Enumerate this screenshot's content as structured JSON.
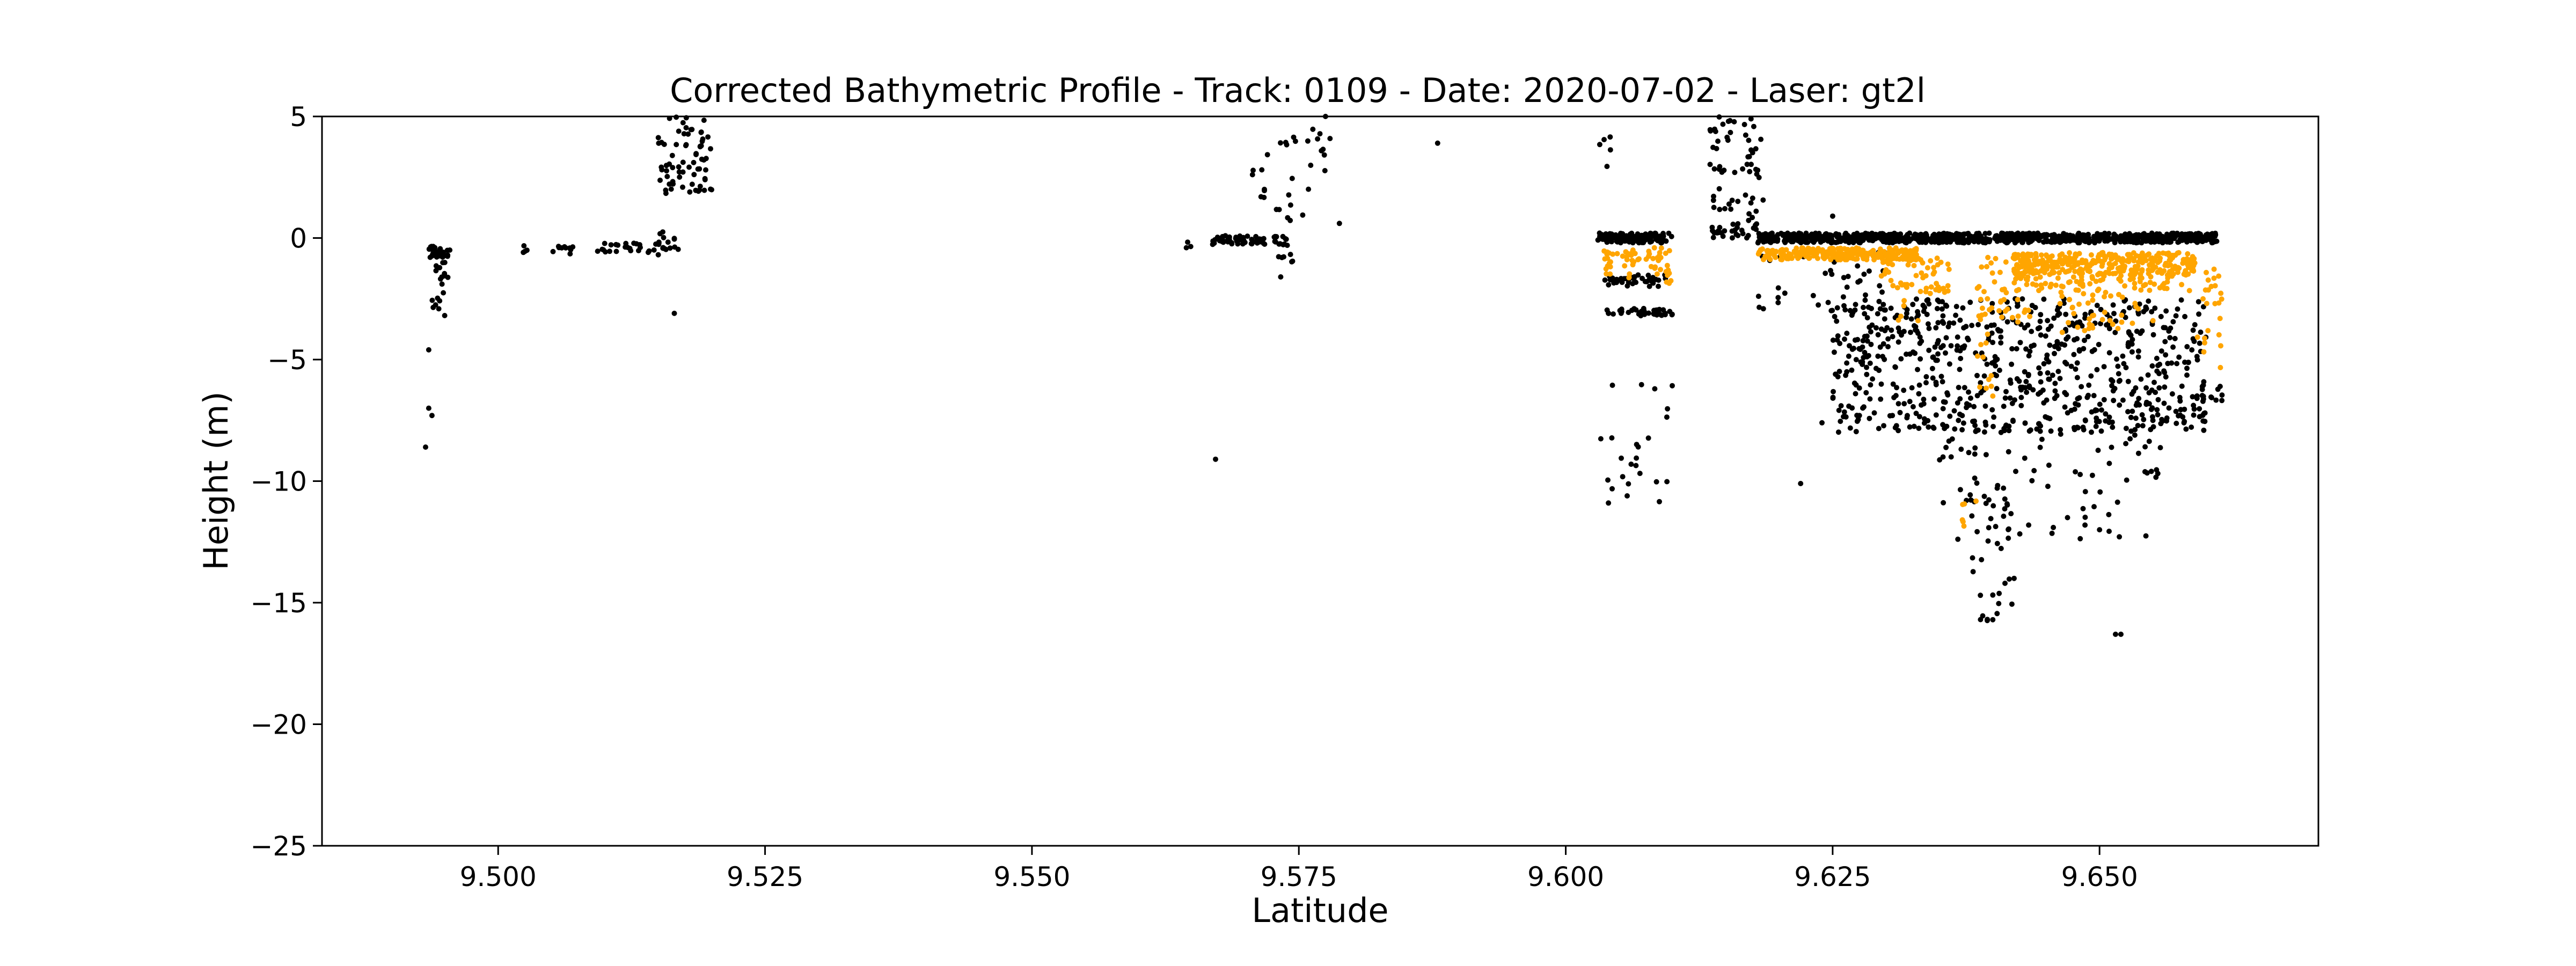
{
  "chart_data": {
    "type": "scatter",
    "title": "Corrected Bathymetric Profile - Track: 0109 - Date: 2020-07-02 - Laser: gt2l",
    "xlabel": "Latitude",
    "ylabel": "Height (m)",
    "xlim": [
      9.4835,
      9.6705
    ],
    "ylim": [
      -25,
      5
    ],
    "x_ticks": [
      9.5,
      9.525,
      9.55,
      9.575,
      9.6,
      9.625,
      9.65
    ],
    "x_tick_labels": [
      "9.500",
      "9.525",
      "9.550",
      "9.575",
      "9.600",
      "9.625",
      "9.650"
    ],
    "y_ticks": [
      5,
      0,
      -5,
      -10,
      -15,
      -20,
      -25
    ],
    "y_tick_labels": [
      "5",
      "0",
      "−5",
      "−10",
      "−15",
      "−20",
      "−25"
    ],
    "grid": false,
    "legend": "none",
    "series": [
      {
        "color": "#000000",
        "clusters": [
          {
            "x": [
              9.4935,
              9.4955
            ],
            "y": [
              -0.8,
              -0.3
            ],
            "count": 30
          },
          {
            "x": [
              9.4935,
              9.495
            ],
            "y": [
              -3.2,
              -0.8
            ],
            "count": 14
          },
          {
            "x": [
              9.4945,
              9.496
            ],
            "y": [
              -2.2,
              -1.0
            ],
            "count": 6
          },
          {
            "x": [
              9.502,
              9.5035
            ],
            "y": [
              -0.6,
              -0.3
            ],
            "count": 4
          },
          {
            "x": [
              9.5045,
              9.507
            ],
            "y": [
              -0.7,
              -0.3
            ],
            "count": 10
          },
          {
            "x": [
              9.509,
              9.5155
            ],
            "y": [
              -0.7,
              -0.2
            ],
            "count": 28
          },
          {
            "x": [
              9.515,
              9.517
            ],
            "y": [
              -0.5,
              0.3
            ],
            "count": 14
          },
          {
            "x": [
              9.515,
              9.52
            ],
            "y": [
              1.8,
              5.0
            ],
            "count": 70
          },
          {
            "x": [
              9.5635,
              9.565
            ],
            "y": [
              -0.4,
              -0.1
            ],
            "count": 3
          },
          {
            "x": [
              9.5665,
              9.574
            ],
            "y": [
              -0.3,
              0.1
            ],
            "count": 60
          },
          {
            "x": [
              9.573,
              9.5745
            ],
            "y": [
              -1.0,
              -0.2
            ],
            "count": 6
          },
          {
            "x": [
              9.5705,
              9.578
            ],
            "y": [
              0.6,
              5.0
            ],
            "count": 32
          },
          {
            "x": [
              9.603,
              9.61
            ],
            "y": [
              -0.2,
              0.2
            ],
            "count": 120
          },
          {
            "x": [
              9.6035,
              9.6095
            ],
            "y": [
              -2.0,
              -1.5
            ],
            "count": 40
          },
          {
            "x": [
              9.6035,
              9.61
            ],
            "y": [
              -3.2,
              -2.9
            ],
            "count": 40
          },
          {
            "x": [
              9.603,
              9.6045
            ],
            "y": [
              2.8,
              4.2
            ],
            "count": 5
          },
          {
            "x": [
              9.603,
              9.61
            ],
            "y": [
              -11.0,
              -6.0
            ],
            "count": 24
          },
          {
            "x": [
              9.6135,
              9.6185
            ],
            "y": [
              0.0,
              5.0
            ],
            "count": 70
          },
          {
            "x": [
              9.6135,
              9.618
            ],
            "y": [
              0.0,
              0.5
            ],
            "count": 20
          },
          {
            "x": [
              9.618,
              9.661
            ],
            "y": [
              -0.2,
              0.2
            ],
            "count": 900
          },
          {
            "x": [
              9.618,
              9.63
            ],
            "y": [
              -3.0,
              -0.5
            ],
            "count": 40
          },
          {
            "x": [
              9.625,
              9.66
            ],
            "y": [
              -8.0,
              -2.5
            ],
            "count": 700
          },
          {
            "x": [
              9.635,
              9.656
            ],
            "y": [
              -12.5,
              -6.0
            ],
            "count": 100
          },
          {
            "x": [
              9.638,
              9.642
            ],
            "y": [
              -15.8,
              -10.0
            ],
            "count": 30
          },
          {
            "x": [
              9.659,
              9.6615
            ],
            "y": [
              -7.2,
              -5.8
            ],
            "count": 12
          }
        ],
        "points": [
          {
            "x": 9.4935,
            "y": -4.6
          },
          {
            "x": 9.4935,
            "y": -7.0
          },
          {
            "x": 9.4938,
            "y": -7.3
          },
          {
            "x": 9.4932,
            "y": -8.6
          },
          {
            "x": 9.5165,
            "y": -3.1
          },
          {
            "x": 9.5672,
            "y": -9.1
          },
          {
            "x": 9.5733,
            "y": -1.6
          },
          {
            "x": 9.5788,
            "y": 0.6
          },
          {
            "x": 9.5775,
            "y": 5.0
          },
          {
            "x": 9.588,
            "y": 3.9
          },
          {
            "x": 9.625,
            "y": 0.9
          },
          {
            "x": 9.624,
            "y": -7.6
          },
          {
            "x": 9.622,
            "y": -10.1
          },
          {
            "x": 9.604,
            "y": -10.9
          },
          {
            "x": 9.64,
            "y": -15.7
          },
          {
            "x": 9.642,
            "y": -14.0
          },
          {
            "x": 9.652,
            "y": -16.3
          },
          {
            "x": 9.6515,
            "y": -16.3
          },
          {
            "x": 9.647,
            "y": -11.5
          },
          {
            "x": 9.65,
            "y": -12.0
          }
        ]
      },
      {
        "color": "#ffa500",
        "clusters": [
          {
            "x": [
              9.6035,
              9.6045
            ],
            "y": [
              -1.6,
              -0.4
            ],
            "count": 14
          },
          {
            "x": [
              9.6045,
              9.61
            ],
            "y": [
              -0.9,
              -0.4
            ],
            "count": 22
          },
          {
            "x": [
              9.6055,
              9.6065
            ],
            "y": [
              -1.7,
              -0.6
            ],
            "count": 10
          },
          {
            "x": [
              9.608,
              9.609
            ],
            "y": [
              -1.6,
              -0.6
            ],
            "count": 8
          },
          {
            "x": [
              9.6093,
              9.61
            ],
            "y": [
              -1.9,
              -0.7
            ],
            "count": 8
          },
          {
            "x": [
              9.618,
              9.633
            ],
            "y": [
              -0.9,
              -0.4
            ],
            "count": 260
          },
          {
            "x": [
              9.6295,
              9.633
            ],
            "y": [
              -2.0,
              -0.8
            ],
            "count": 24
          },
          {
            "x": [
              9.631,
              9.632
            ],
            "y": [
              -3.5,
              -2.0
            ],
            "count": 6
          },
          {
            "x": [
              9.633,
              9.636
            ],
            "y": [
              -2.3,
              -0.8
            ],
            "count": 30
          },
          {
            "x": [
              9.6385,
              9.6435
            ],
            "y": [
              -3.5,
              -0.8
            ],
            "count": 50
          },
          {
            "x": [
              9.6385,
              9.64
            ],
            "y": [
              -6.5,
              -3.5
            ],
            "count": 10
          },
          {
            "x": [
              9.642,
              9.659
            ],
            "y": [
              -1.5,
              -0.6
            ],
            "count": 320
          },
          {
            "x": [
              9.642,
              9.659
            ],
            "y": [
              -2.2,
              -1.5
            ],
            "count": 80
          },
          {
            "x": [
              9.646,
              9.654
            ],
            "y": [
              -4.0,
              -2.2
            ],
            "count": 40
          },
          {
            "x": [
              9.637,
              9.6385
            ],
            "y": [
              -12.0,
              -10.8
            ],
            "count": 6
          },
          {
            "x": [
              9.659,
              9.6615
            ],
            "y": [
              -5.8,
              -1.2
            ],
            "count": 24
          }
        ],
        "points": [
          {
            "x": 9.64,
            "y": -6.5
          },
          {
            "x": 9.655,
            "y": -3.4
          },
          {
            "x": 9.633,
            "y": -3.4
          }
        ]
      }
    ]
  }
}
